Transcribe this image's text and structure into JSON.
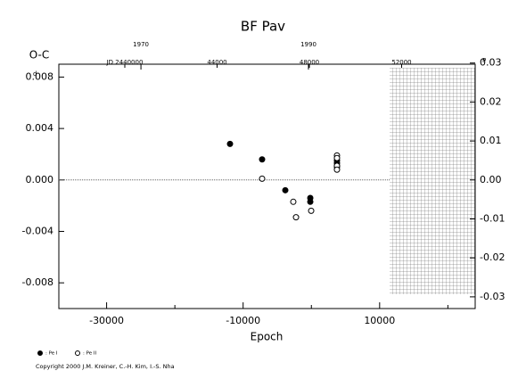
{
  "chart_data": {
    "type": "scatter",
    "title": "BF Pav",
    "y_label": "O-C",
    "x_label": "Epoch",
    "y_unit": "d",
    "y2_unit": "P",
    "xlim": [
      -37000,
      24000
    ],
    "xticks": [
      -30000,
      -10000,
      10000
    ],
    "xminorticks": [
      -20000,
      0,
      20000
    ],
    "ylim": [
      -0.01,
      0.009
    ],
    "yticks": [
      0.008,
      0.004,
      {
        "value": 0,
        "label": "0.000"
      },
      -0.004,
      -0.008
    ],
    "y2lim": [
      -0.033,
      0.0297
    ],
    "y2ticks": [
      0.03,
      0.02,
      0.01,
      {
        "value": 0,
        "label": "0.00"
      },
      -0.01,
      -0.02,
      -0.03
    ],
    "x2lim": [
      1960.2,
      2009.9
    ],
    "x2ticks": [
      1970,
      1990
    ],
    "x3lim": [
      2437140,
      2455188
    ],
    "x3ticks": [
      {
        "value": 2440000,
        "label": "JD 2440000"
      },
      {
        "value": 2444000,
        "label": "44000"
      },
      {
        "value": 2448000,
        "label": "48000"
      },
      {
        "value": 2452000,
        "label": "52000"
      }
    ],
    "zero_line": true,
    "series": [
      {
        "name": ": Pe I",
        "marker": "filled",
        "color": "#000000",
        "x": [
          -11920,
          -7220,
          -3820,
          -160,
          -160,
          3750,
          3750,
          3750,
          3750
        ],
        "values": [
          0.0028,
          0.0016,
          -0.0008,
          -0.0014,
          -0.0017,
          0.0015,
          0.0013,
          0.0011,
          0.001
        ]
      },
      {
        "name": ": Pe II",
        "marker": "open",
        "color": "#000000",
        "x": [
          -7220,
          -2650,
          -2250,
          -30,
          3750,
          3750,
          3750,
          3750
        ],
        "values": [
          0.0001,
          -0.0017,
          -0.0029,
          -0.0024,
          0.0019,
          0.0017,
          0.0011,
          0.0008
        ]
      }
    ],
    "copyright": "Copyright 2000 J.M. Kreiner, C.-H. Kim, I.-S. Nha"
  }
}
